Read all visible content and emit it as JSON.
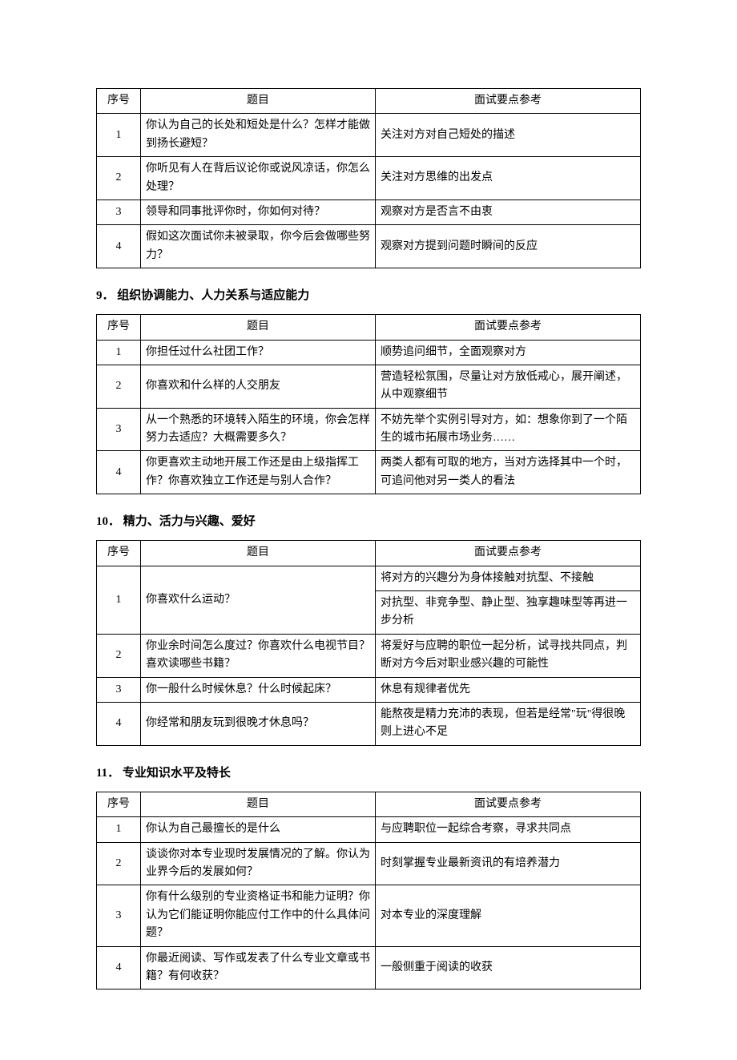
{
  "headers": {
    "num": "序号",
    "question": "题目",
    "reference": "面试要点参考"
  },
  "section8": {
    "rows": [
      {
        "num": "1",
        "q": "你认为自己的长处和短处是什么？怎样才能做到扬长避短？",
        "ref": "关注对方对自己短处的描述"
      },
      {
        "num": "2",
        "q": "你听见有人在背后议论你或说风凉话，你怎么处理？",
        "ref": "关注对方思维的出发点"
      },
      {
        "num": "3",
        "q": "领导和同事批评你时，你如何对待？",
        "ref": "观察对方是否言不由衷"
      },
      {
        "num": "4",
        "q": "假如这次面试你未被录取，你今后会做哪些努力？",
        "ref": "观察对方提到问题时瞬间的反应"
      }
    ]
  },
  "section9": {
    "heading": "9． 组织协调能力、人力关系与适应能力",
    "rows": [
      {
        "num": "1",
        "q": "你担任过什么社团工作？",
        "ref": "顺势追问细节，全面观察对方"
      },
      {
        "num": "2",
        "q": "你喜欢和什么样的人交朋友",
        "ref": "营造轻松氛围，尽量让对方放低戒心，展开阐述，从中观察细节"
      },
      {
        "num": "3",
        "q": "从一个熟悉的环境转入陌生的环境，你会怎样努力去适应？大概需要多久？",
        "ref": "不妨先举个实例引导对方，如：想象你到了一个陌生的城市拓展市场业务……"
      },
      {
        "num": "4",
        "q": "你更喜欢主动地开展工作还是由上级指挥工作？你喜欢独立工作还是与别人合作？",
        "ref": "两类人都有可取的地方，当对方选择其中一个时，可追问他对另一类人的看法"
      }
    ]
  },
  "section10": {
    "heading": "10． 精力、活力与兴趣、爱好",
    "rows": [
      {
        "num": "1",
        "q": "你喜欢什么运动？",
        "ref1": "将对方的兴趣分为身体接触对抗型、不接触",
        "ref2": "对抗型、非竞争型、静止型、独享趣味型等再进一步分析"
      },
      {
        "num": "2",
        "q": "你业余时间怎么度过？你喜欢什么电视节目？喜欢读哪些书籍？",
        "ref": "将爱好与应聘的职位一起分析，试寻找共同点，判断对方今后对职业感兴趣的可能性"
      },
      {
        "num": "3",
        "q": "你一般什么时候休息？什么时候起床？",
        "ref": "休息有规律者优先"
      },
      {
        "num": "4",
        "q": "你经常和朋友玩到很晚才休息吗？",
        "ref": "能熬夜是精力充沛的表现，但若是经常\"玩\"得很晚则上进心不足"
      }
    ]
  },
  "section11": {
    "heading": "11． 专业知识水平及特长",
    "rows": [
      {
        "num": "1",
        "q": "你认为自己最擅长的是什么",
        "ref": "与应聘职位一起综合考察，寻求共同点"
      },
      {
        "num": "2",
        "q": "谈谈你对本专业现时发展情况的了解。你认为业界今后的发展如何？",
        "ref": "时刻掌握专业最新资讯的有培养潜力"
      },
      {
        "num": "3",
        "q": "你有什么级别的专业资格证书和能力证明？你认为它们能证明你能应付工作中的什么具体问题？",
        "ref": "对本专业的深度理解"
      },
      {
        "num": "4",
        "q": "你最近阅读、写作或发表了什么专业文章或书籍？有何收获？",
        "ref": "一般侧重于阅读的收获"
      }
    ]
  },
  "colors": {
    "text": "#000000",
    "border": "#000000",
    "background": "#ffffff"
  },
  "typography": {
    "body_font": "SimSun",
    "body_size_pt": 14,
    "heading_size_pt": 15,
    "heading_weight": "bold"
  }
}
